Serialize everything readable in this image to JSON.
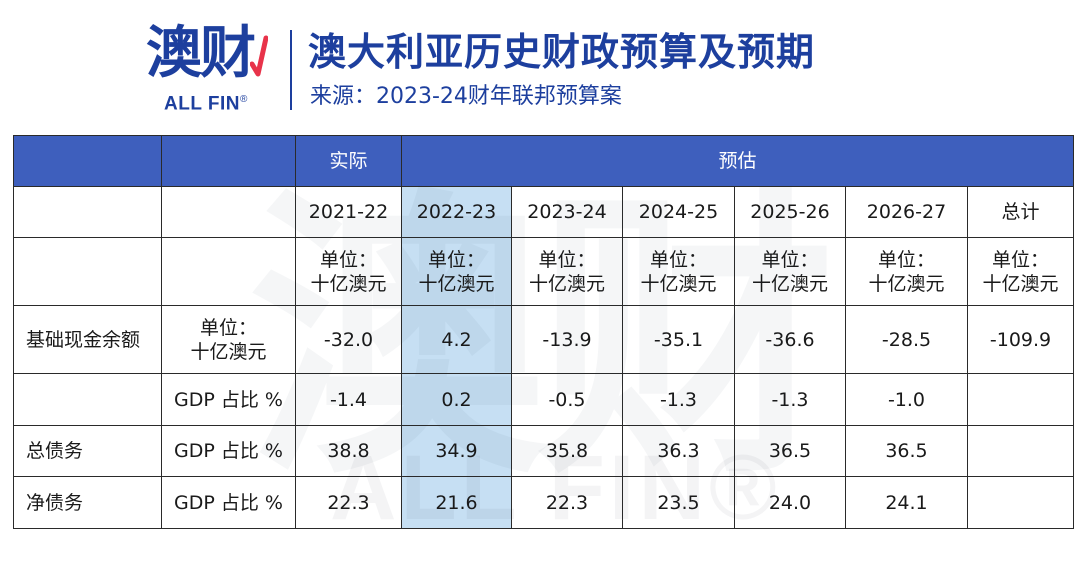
{
  "header": {
    "logo_cn": "澳财",
    "logo_en": "ALL FIN",
    "logo_reg": "®",
    "title": "澳大利亚历史财政预算及预期",
    "subtitle": "来源：2023-24财年联邦预算案"
  },
  "watermark": {
    "cn": "澳财",
    "en": "ALL FIN®"
  },
  "colors": {
    "brand": "#1d3f9e",
    "header_row": "#3e5fbd",
    "highlight_column": "#c6dff3",
    "border": "#2a2a2a"
  },
  "table": {
    "group_headers": {
      "actual": "实际",
      "forecast": "预估"
    },
    "years": [
      "2021-22",
      "2022-23",
      "2023-24",
      "2024-25",
      "2025-26",
      "2026-27",
      "总计"
    ],
    "unit_line1": "单位：",
    "unit_line2": "十亿澳元",
    "rows": [
      {
        "label": "基础现金余额",
        "unit_line1": "单位：",
        "unit_line2": "十亿澳元",
        "values": [
          "-32.0",
          "4.2",
          "-13.9",
          "-35.1",
          "-36.6",
          "-28.5",
          "-109.9"
        ]
      },
      {
        "label": "",
        "unit": "GDP 占比 %",
        "values": [
          "-1.4",
          "0.2",
          "-0.5",
          "-1.3",
          "-1.3",
          "-1.0",
          ""
        ]
      },
      {
        "label": "总债务",
        "unit": "GDP 占比 %",
        "values": [
          "38.8",
          "34.9",
          "35.8",
          "36.3",
          "36.5",
          "36.5",
          ""
        ]
      },
      {
        "label": "净债务",
        "unit": "GDP 占比 %",
        "values": [
          "22.3",
          "21.6",
          "22.3",
          "23.5",
          "24.0",
          "24.1",
          ""
        ]
      }
    ]
  }
}
